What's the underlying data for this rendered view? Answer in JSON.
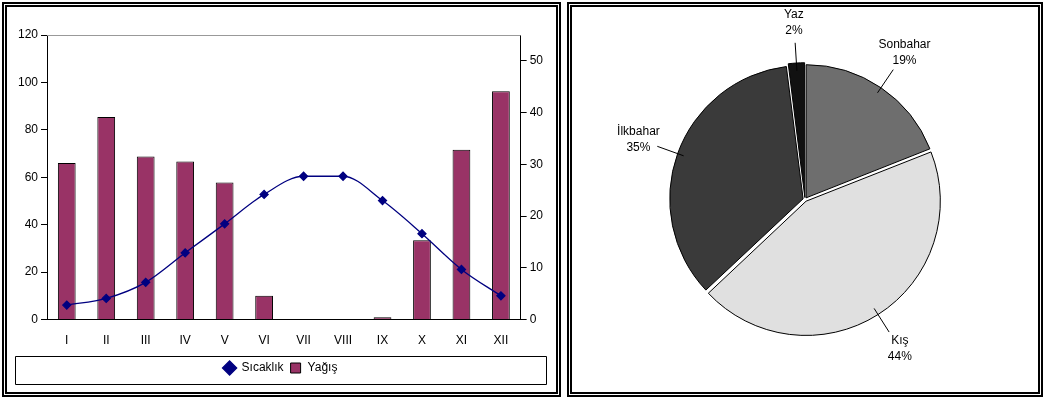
{
  "chart_data": [
    {
      "type": "bar",
      "categories": [
        "I",
        "II",
        "III",
        "IV",
        "V",
        "VI",
        "VII",
        "VIII",
        "IX",
        "X",
        "XI",
        "XII"
      ],
      "series": [
        {
          "name": "Yağış",
          "type": "bar",
          "color": "#993366",
          "values": [
            66,
            85.4,
            68.8,
            66.7,
            57.8,
            10.1,
            0,
            0,
            1,
            33.5,
            71.6,
            96.3
          ]
        },
        {
          "name": "Sıcaklık",
          "type": "line",
          "axis": "y2",
          "color": "#000080",
          "marker": "diamond",
          "values": [
            2.8,
            4.1,
            7.2,
            12.9,
            18.5,
            24.2,
            27.7,
            27.7,
            23.0,
            16.6,
            9.7,
            4.6
          ]
        }
      ],
      "ylim": [
        0,
        120
      ],
      "yticks": [
        0,
        20,
        40,
        60,
        80,
        100,
        120
      ],
      "y2lim": [
        0,
        55
      ],
      "y2ticks": [
        0,
        10,
        20,
        30,
        40,
        50
      ],
      "grid": false,
      "legend": "bottom"
    },
    {
      "type": "pie",
      "categories": [
        "Sonbahar",
        "Kış",
        "İlkbahar",
        "Yaz"
      ],
      "values": [
        19,
        44,
        35,
        2
      ],
      "colors": [
        "#6e6e6e",
        "#e0e0e0",
        "#3a3a3a",
        "#111111"
      ],
      "value_labels": [
        "19%",
        "44%",
        "35%",
        "2%"
      ]
    }
  ]
}
